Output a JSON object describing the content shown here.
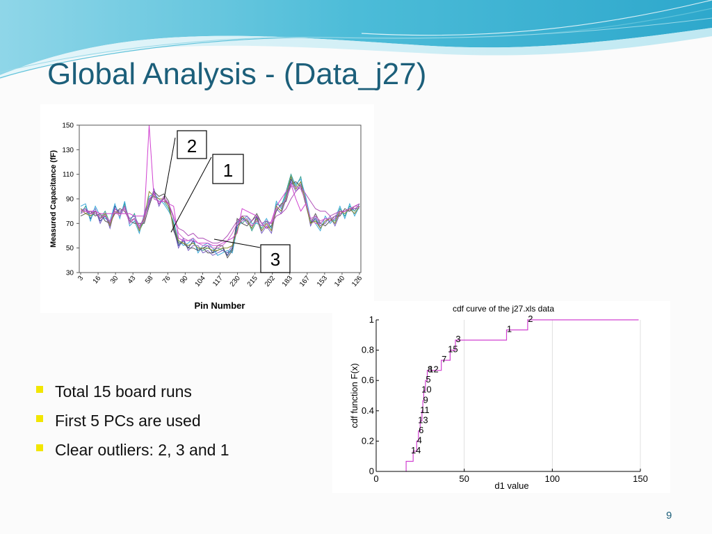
{
  "slide": {
    "title": "Global Analysis - (Data_j27)",
    "page_number": "9",
    "bullets": [
      "Total 15 board runs",
      "First 5 PCs are used",
      "Clear outliers: 2, 3 and 1"
    ],
    "colors": {
      "title": "#1c5f7a",
      "bullet": "#f2e600",
      "wave": "#3fb8d6"
    }
  },
  "chart_data": [
    {
      "type": "line",
      "xlabel": "Pin Number",
      "ylabel": "Measured Capacitance (fF)",
      "ylim": [
        30,
        150
      ],
      "y_ticks": [
        150,
        130,
        110,
        90,
        70,
        50,
        30
      ],
      "x_tick_labels": [
        "3",
        "16",
        "30",
        "43",
        "58",
        "76",
        "90",
        "104",
        "117",
        "230",
        "215",
        "202",
        "183",
        "167",
        "153",
        "140",
        "126"
      ],
      "grid": false,
      "legend": "none",
      "outlier_callouts": [
        "2",
        "1",
        "3"
      ],
      "series": [
        {
          "values": [
            80,
            82,
            74,
            80,
            72,
            76,
            68,
            84,
            78,
            84,
            70,
            74,
            66,
            76,
            88,
            95,
            86,
            90,
            84,
            68,
            52,
            56,
            50,
            56,
            48,
            50,
            52,
            46,
            48,
            50,
            44,
            50,
            68,
            74,
            72,
            66,
            76,
            64,
            70,
            64,
            84,
            80,
            92,
            106,
            98,
            104,
            88,
            70,
            74,
            66,
            72,
            74,
            70,
            80,
            78,
            82,
            78,
            84
          ]
        },
        {
          "values": [
            78,
            84,
            76,
            78,
            74,
            80,
            70,
            80,
            76,
            86,
            72,
            78,
            64,
            72,
            90,
            92,
            88,
            88,
            82,
            70,
            54,
            54,
            52,
            54,
            50,
            48,
            50,
            48,
            50,
            48,
            46,
            48,
            72,
            70,
            74,
            64,
            72,
            66,
            72,
            66,
            86,
            84,
            96,
            110,
            100,
            108,
            86,
            72,
            72,
            70,
            74,
            72,
            72,
            82,
            76,
            84,
            80,
            86
          ]
        },
        {
          "values": [
            82,
            80,
            78,
            82,
            70,
            78,
            66,
            82,
            80,
            82,
            74,
            76,
            68,
            74,
            86,
            98,
            84,
            92,
            86,
            66,
            50,
            58,
            48,
            52,
            52,
            46,
            48,
            44,
            46,
            48,
            46,
            52,
            70,
            76,
            70,
            68,
            74,
            62,
            68,
            62,
            82,
            78,
            90,
            104,
            96,
            102,
            90,
            68,
            76,
            68,
            70,
            76,
            68,
            78,
            80,
            80,
            82,
            82
          ]
        },
        {
          "values": [
            84,
            86,
            72,
            84,
            76,
            74,
            72,
            86,
            74,
            88,
            68,
            72,
            62,
            78,
            92,
            94,
            90,
            86,
            80,
            72,
            56,
            52,
            54,
            58,
            46,
            52,
            54,
            50,
            44,
            46,
            48,
            46,
            66,
            72,
            76,
            70,
            70,
            68,
            74,
            66,
            88,
            82,
            94,
            108,
            102,
            106,
            92,
            74,
            70,
            64,
            76,
            70,
            74,
            84,
            74,
            86,
            76,
            84
          ]
        },
        {
          "values": [
            76,
            78,
            80,
            76,
            78,
            72,
            70,
            78,
            82,
            80,
            72,
            70,
            70,
            70,
            84,
            96,
            92,
            94,
            88,
            64,
            54,
            54,
            50,
            50,
            48,
            50,
            46,
            46,
            52,
            52,
            42,
            48,
            74,
            70,
            68,
            72,
            78,
            70,
            66,
            68,
            80,
            86,
            88,
            102,
            104,
            100,
            86,
            70,
            78,
            70,
            68,
            72,
            76,
            76,
            82,
            80,
            84,
            86
          ]
        },
        {
          "values": [
            80,
            80,
            80,
            80,
            78,
            78,
            78,
            78,
            78,
            78,
            78,
            76,
            76,
            76,
            150,
            90,
            88,
            88,
            86,
            84,
            58,
            56,
            56,
            56,
            54,
            54,
            54,
            52,
            52,
            54,
            56,
            58,
            62,
            82,
            80,
            78,
            76,
            70,
            66,
            72,
            84,
            90,
            96,
            102,
            90,
            80,
            86,
            74,
            70,
            70,
            74,
            72,
            74,
            78,
            80,
            82,
            84,
            86
          ]
        },
        {
          "values": [
            82,
            78,
            76,
            80,
            74,
            78,
            68,
            80,
            78,
            84,
            72,
            74,
            64,
            74,
            96,
            92,
            90,
            90,
            84,
            68,
            56,
            54,
            52,
            54,
            50,
            50,
            50,
            48,
            48,
            50,
            50,
            52,
            64,
            76,
            72,
            66,
            74,
            64,
            70,
            64,
            84,
            80,
            92,
            108,
            98,
            104,
            88,
            70,
            72,
            66,
            72,
            74,
            70,
            80,
            78,
            82,
            78,
            84
          ]
        },
        {
          "values": [
            78,
            80,
            78,
            78,
            76,
            76,
            72,
            80,
            76,
            82,
            70,
            74,
            68,
            72,
            90,
            94,
            86,
            92,
            86,
            76,
            62,
            58,
            56,
            58,
            54,
            52,
            52,
            50,
            50,
            52,
            56,
            62,
            70,
            72,
            74,
            68,
            72,
            68,
            70,
            70,
            82,
            84,
            90,
            100,
            100,
            98,
            88,
            74,
            76,
            72,
            74,
            74,
            76,
            80,
            80,
            82,
            84,
            84
          ]
        },
        {
          "values": [
            80,
            82,
            78,
            80,
            74,
            76,
            70,
            82,
            78,
            84,
            72,
            74,
            66,
            76,
            88,
            95,
            86,
            90,
            86,
            74,
            66,
            64,
            60,
            62,
            58,
            58,
            56,
            54,
            54,
            56,
            60,
            66,
            72,
            76,
            76,
            72,
            76,
            70,
            72,
            70,
            76,
            78,
            82,
            90,
            96,
            100,
            94,
            88,
            82,
            80,
            80,
            76,
            78,
            80,
            80,
            82,
            82,
            84
          ]
        }
      ]
    },
    {
      "type": "line",
      "title": "cdf curve of the j27.xls data",
      "xlabel": "d1 value",
      "ylabel": "cdf function F(x)",
      "xlim": [
        0,
        150
      ],
      "ylim": [
        0,
        1
      ],
      "x_ticks": [
        0,
        50,
        100,
        150
      ],
      "y_ticks": [
        0,
        0.2,
        0.4,
        0.6,
        0.8,
        1
      ],
      "grid": true,
      "legend": "none",
      "step": true,
      "series": [
        {
          "x": [
            17,
            21,
            23,
            24,
            25,
            26,
            26.5,
            27,
            28,
            29,
            31,
            37,
            42,
            45,
            74,
            86,
            149
          ],
          "labels": [
            "",
            "14",
            "4",
            "6",
            "13",
            "11",
            "9",
            "10",
            "5",
            "8",
            "12",
            "7",
            "15",
            "3",
            "1",
            "2",
            ""
          ],
          "values": [
            0.0667,
            0.1333,
            0.2,
            0.2667,
            0.3333,
            0.4,
            0.4667,
            0.5333,
            0.6,
            0.6667,
            0.6667,
            0.7333,
            0.8,
            0.8667,
            0.9333,
            1.0,
            1.0
          ]
        }
      ]
    }
  ]
}
